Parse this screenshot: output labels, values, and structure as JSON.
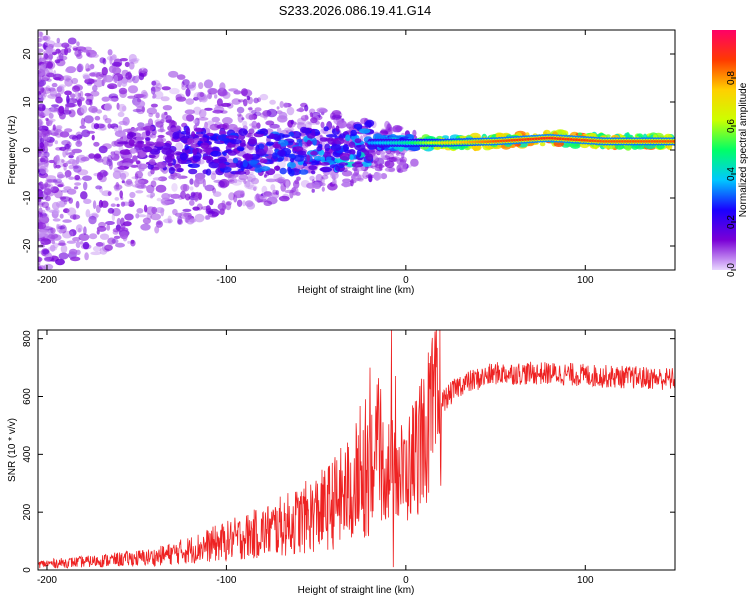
{
  "title": "S233.2026.086.19.41.G14",
  "chart_data": [
    {
      "type": "heatmap",
      "title": "S233.2026.086.19.41.G14",
      "xlabel": "Height of straight line (km)",
      "ylabel": "Frequency (Hz)",
      "xlim": [
        -205,
        150
      ],
      "ylim": [
        -25,
        25
      ],
      "xticks": [
        -200,
        -100,
        0,
        100
      ],
      "yticks": [
        20,
        10,
        0,
        -10,
        -20
      ],
      "colorbar": {
        "label": "Normalized spectral amplitude",
        "range": [
          0,
          1
        ],
        "ticks": [
          0.0,
          0.2,
          0.4,
          0.6,
          0.8
        ],
        "colormap": [
          "#e9d7ff",
          "#7a00d6",
          "#1a00ff",
          "#00c8ff",
          "#00ff66",
          "#ccff00",
          "#ffd000",
          "#ff3a00",
          "#ff0066"
        ]
      },
      "ridge": [
        {
          "x": -200,
          "f": 0.0,
          "amp": 0.05
        },
        {
          "x": -150,
          "f": 0.5,
          "amp": 0.12
        },
        {
          "x": -120,
          "f": 0.0,
          "amp": 0.2
        },
        {
          "x": -80,
          "f": -0.5,
          "amp": 0.25
        },
        {
          "x": -40,
          "f": 0.0,
          "amp": 0.3
        },
        {
          "x": -20,
          "f": 1.5,
          "amp": 0.35
        },
        {
          "x": 0,
          "f": 1.5,
          "amp": 0.45
        },
        {
          "x": 20,
          "f": 1.5,
          "amp": 0.7
        },
        {
          "x": 50,
          "f": 1.8,
          "amp": 0.85
        },
        {
          "x": 80,
          "f": 2.5,
          "amp": 0.9
        },
        {
          "x": 110,
          "f": 1.8,
          "amp": 0.85
        },
        {
          "x": 150,
          "f": 1.8,
          "amp": 0.85
        }
      ]
    },
    {
      "type": "line",
      "xlabel": "Height of straight line (km)",
      "ylabel": "SNR (10 * v/v)",
      "xlim": [
        -205,
        150
      ],
      "ylim": [
        0,
        830
      ],
      "xticks": [
        -200,
        -100,
        0,
        100
      ],
      "yticks": [
        800,
        600,
        400,
        200,
        0
      ],
      "series": [
        {
          "name": "SNR",
          "color": "#ee2222",
          "trend": [
            {
              "x": -205,
              "y": 20
            },
            {
              "x": -175,
              "y": 30
            },
            {
              "x": -140,
              "y": 45
            },
            {
              "x": -120,
              "y": 70
            },
            {
              "x": -100,
              "y": 100
            },
            {
              "x": -80,
              "y": 130
            },
            {
              "x": -60,
              "y": 170
            },
            {
              "x": -45,
              "y": 210
            },
            {
              "x": -30,
              "y": 280
            },
            {
              "x": -20,
              "y": 380
            },
            {
              "x": -10,
              "y": 350
            },
            {
              "x": 0,
              "y": 330
            },
            {
              "x": 10,
              "y": 470
            },
            {
              "x": 20,
              "y": 580
            },
            {
              "x": 30,
              "y": 640
            },
            {
              "x": 50,
              "y": 680
            },
            {
              "x": 80,
              "y": 680
            },
            {
              "x": 110,
              "y": 670
            },
            {
              "x": 150,
              "y": 660
            }
          ],
          "spikes": [
            {
              "x": -20,
              "y": 700
            },
            {
              "x": -8,
              "y": 830
            },
            {
              "x": -7,
              "y": 10
            }
          ]
        }
      ]
    }
  ]
}
